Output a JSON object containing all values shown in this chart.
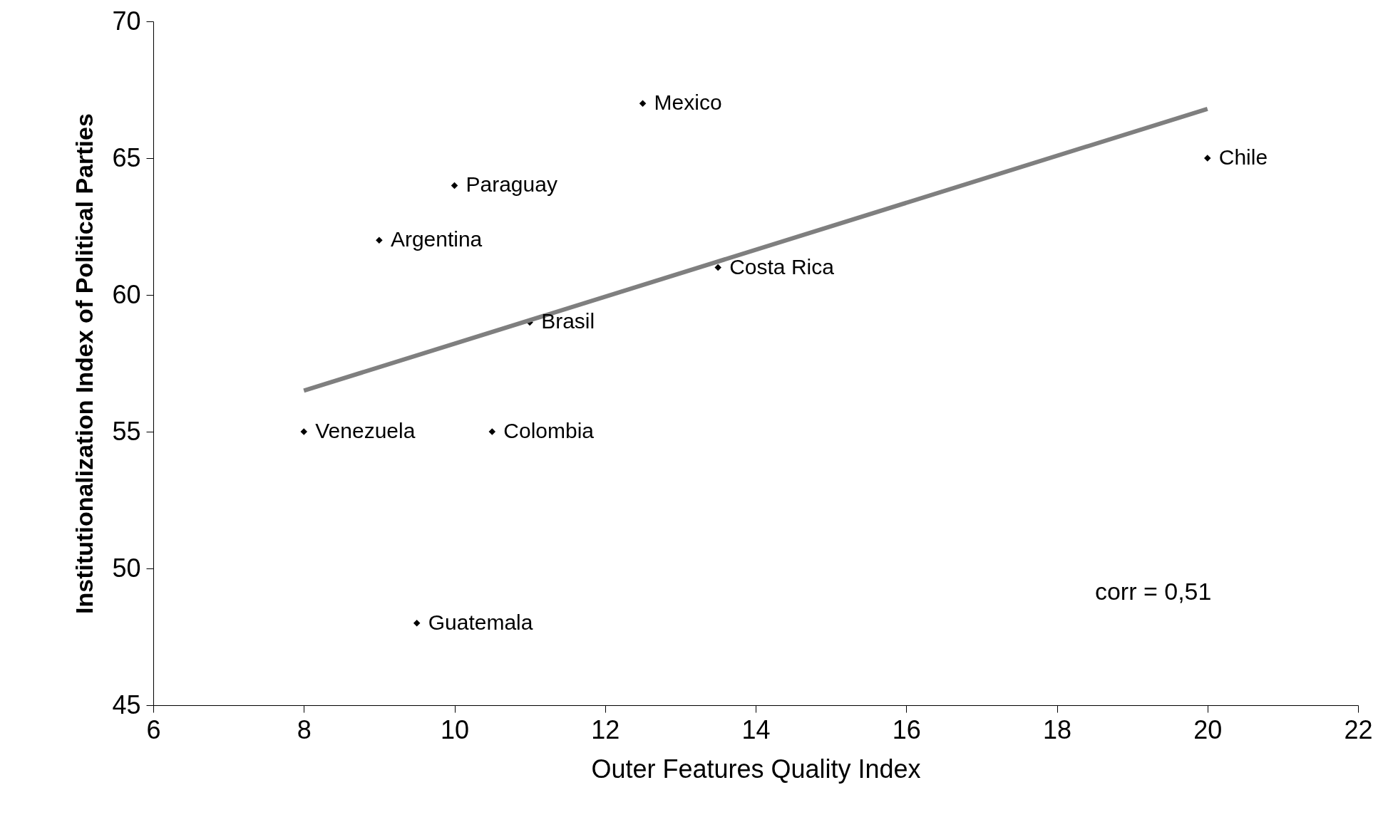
{
  "chart_data": {
    "type": "scatter",
    "xlabel": "Outer Features Quality Index",
    "ylabel": "Institutionalization Index of Political Parties",
    "xlim": [
      6,
      22
    ],
    "xticks": [
      6,
      8,
      10,
      12,
      14,
      16,
      18,
      20,
      22
    ],
    "ylim": [
      45,
      70
    ],
    "yticks": [
      45,
      50,
      55,
      60,
      65,
      70
    ],
    "grid": false,
    "series": [
      {
        "marker": "diamond",
        "color": "#000000",
        "x": [
          12.5,
          20,
          10,
          9,
          13.5,
          11,
          8,
          10.5,
          9.5
        ],
        "values": [
          67,
          65,
          64,
          62,
          61,
          59,
          55,
          55,
          48
        ]
      },
      {
        "type": "line",
        "color": "#7f7f7f",
        "x": [
          8,
          20
        ],
        "values": [
          56.5,
          66.8
        ]
      }
    ],
    "annotations": [
      {
        "text": "Mexico",
        "x": 12.5,
        "y": 67
      },
      {
        "text": "Chile",
        "x": 20,
        "y": 65
      },
      {
        "text": "Paraguay",
        "x": 10,
        "y": 64
      },
      {
        "text": "Argentina",
        "x": 9,
        "y": 62
      },
      {
        "text": "Costa Rica",
        "x": 13.5,
        "y": 61
      },
      {
        "text": "Brasil",
        "x": 11,
        "y": 59
      },
      {
        "text": "Venezuela",
        "x": 8,
        "y": 55
      },
      {
        "text": "Colombia",
        "x": 10.5,
        "y": 55
      },
      {
        "text": "Guatemala",
        "x": 9.5,
        "y": 48
      },
      "corr = 0,51"
    ]
  }
}
